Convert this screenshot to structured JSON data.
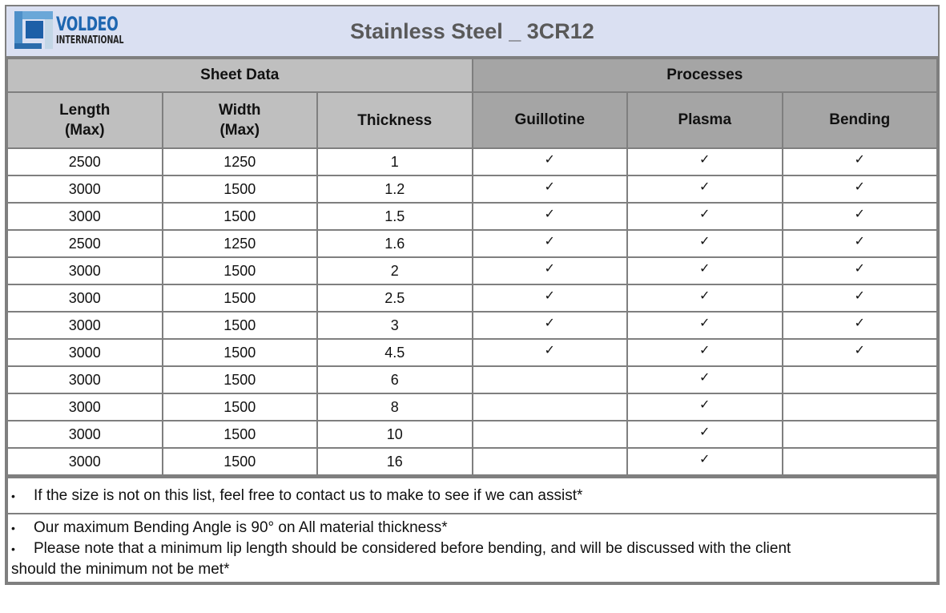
{
  "header": {
    "logo": {
      "name": "VOLDEO",
      "subtitle": "INTERNATIONAL"
    },
    "title": "Stainless Steel _ 3CR12"
  },
  "groups": {
    "sheet_data": "Sheet Data",
    "processes": "Processes"
  },
  "columns": {
    "length": {
      "line1": "Length",
      "line2": "(Max)"
    },
    "width": {
      "line1": "Width",
      "line2": "(Max)"
    },
    "thickness": "Thickness",
    "guillotine": "Guillotine",
    "plasma": "Plasma",
    "bending": "Bending"
  },
  "check_symbol": "✓",
  "rows": [
    {
      "length": "2500",
      "width": "1250",
      "thickness": "1",
      "guillotine": "✓",
      "plasma": "✓",
      "bending": "✓"
    },
    {
      "length": "3000",
      "width": "1500",
      "thickness": "1.2",
      "guillotine": "✓",
      "plasma": "✓",
      "bending": "✓"
    },
    {
      "length": "3000",
      "width": "1500",
      "thickness": "1.5",
      "guillotine": "✓",
      "plasma": "✓",
      "bending": "✓"
    },
    {
      "length": "2500",
      "width": "1250",
      "thickness": "1.6",
      "guillotine": "✓",
      "plasma": "✓",
      "bending": "✓"
    },
    {
      "length": "3000",
      "width": "1500",
      "thickness": "2",
      "guillotine": "✓",
      "plasma": "✓",
      "bending": "✓"
    },
    {
      "length": "3000",
      "width": "1500",
      "thickness": "2.5",
      "guillotine": "✓",
      "plasma": "✓",
      "bending": "✓"
    },
    {
      "length": "3000",
      "width": "1500",
      "thickness": "3",
      "guillotine": "✓",
      "plasma": "✓",
      "bending": "✓"
    },
    {
      "length": "3000",
      "width": "1500",
      "thickness": "4.5",
      "guillotine": "✓",
      "plasma": "✓",
      "bending": "✓"
    },
    {
      "length": "3000",
      "width": "1500",
      "thickness": "6",
      "guillotine": "",
      "plasma": "✓",
      "bending": ""
    },
    {
      "length": "3000",
      "width": "1500",
      "thickness": "8",
      "guillotine": "",
      "plasma": "✓",
      "bending": ""
    },
    {
      "length": "3000",
      "width": "1500",
      "thickness": "10",
      "guillotine": "",
      "plasma": "✓",
      "bending": ""
    },
    {
      "length": "3000",
      "width": "1500",
      "thickness": "16",
      "guillotine": "",
      "plasma": "✓",
      "bending": ""
    }
  ],
  "notes": {
    "bullet": "•",
    "note1": "If the size is not on this list, feel free to contact us to make to see if we can assist*",
    "note2": "Our maximum Bending Angle is 90° on All material thickness*",
    "note3a": "Please note that a minimum lip length should be considered before bending, and will be discussed with the client",
    "note3b": "should the minimum not be met*"
  },
  "colors": {
    "title_bg": "#dae0f2",
    "sheet_header_bg": "#bfbfbf",
    "process_header_bg": "#a5a5a5",
    "border": "#7f7f7f",
    "brand_blue": "#1e66b0"
  }
}
